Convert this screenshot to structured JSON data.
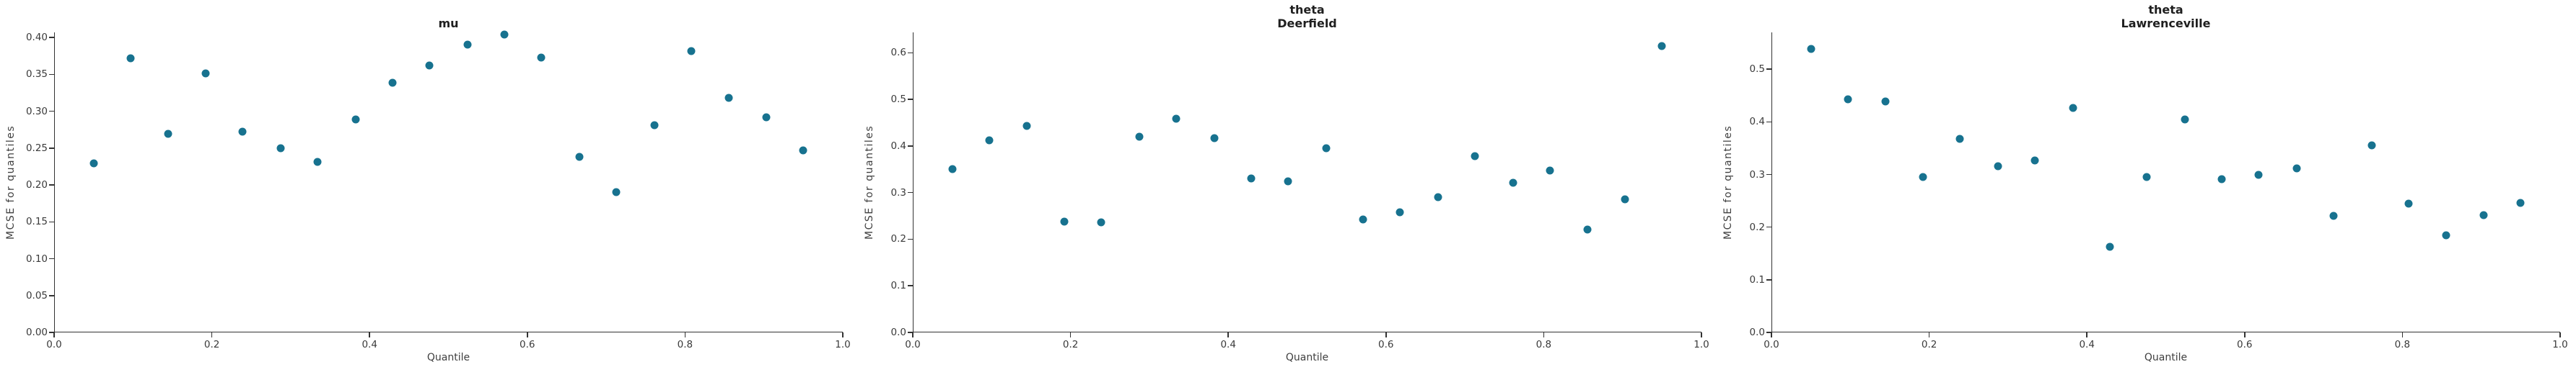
{
  "figure": {
    "background": "#ffffff",
    "point_color": "#17728f",
    "axis_color": "#333333",
    "tick_text_color": "#3a3a3a",
    "axis_title_color": "#3f3f3f",
    "title_color": "#1f1f1f"
  },
  "chart_data": [
    {
      "type": "scatter",
      "title_lines": [
        "mu",
        ""
      ],
      "xlabel": "Quantile",
      "ylabel": "MCSE for quantiles",
      "x": [
        0.05,
        0.097,
        0.145,
        0.192,
        0.239,
        0.287,
        0.334,
        0.382,
        0.429,
        0.476,
        0.524,
        0.571,
        0.618,
        0.666,
        0.713,
        0.761,
        0.808,
        0.855,
        0.903,
        0.95
      ],
      "y": [
        0.229,
        0.372,
        0.269,
        0.351,
        0.272,
        0.25,
        0.231,
        0.289,
        0.339,
        0.362,
        0.39,
        0.404,
        0.373,
        0.238,
        0.19,
        0.281,
        0.382,
        0.318,
        0.292,
        0.247
      ],
      "xlim": [
        0,
        1
      ],
      "ylim": [
        0,
        0.407
      ],
      "x_ticks": [
        0.0,
        0.2,
        0.4,
        0.6,
        0.8,
        1.0
      ],
      "x_tick_labels": [
        "0.0",
        "0.2",
        "0.4",
        "0.6",
        "0.8",
        "1.0"
      ],
      "y_ticks": [
        0.0,
        0.05,
        0.1,
        0.15,
        0.2,
        0.25,
        0.3,
        0.35,
        0.4
      ],
      "y_tick_labels": [
        "0.00",
        "0.05",
        "0.10",
        "0.15",
        "0.20",
        "0.25",
        "0.30",
        "0.35",
        "0.40"
      ],
      "grid": false,
      "legend": "none"
    },
    {
      "type": "scatter",
      "title_lines": [
        "theta",
        "Deerfield"
      ],
      "xlabel": "Quantile",
      "ylabel": "MCSE for quantiles",
      "x": [
        0.05,
        0.097,
        0.145,
        0.192,
        0.239,
        0.287,
        0.334,
        0.382,
        0.429,
        0.476,
        0.524,
        0.571,
        0.618,
        0.666,
        0.713,
        0.761,
        0.808,
        0.855,
        0.903,
        0.95
      ],
      "y": [
        0.351,
        0.413,
        0.444,
        0.238,
        0.236,
        0.42,
        0.458,
        0.417,
        0.33,
        0.325,
        0.396,
        0.243,
        0.258,
        0.291,
        0.378,
        0.322,
        0.347,
        0.221,
        0.286,
        0.614
      ],
      "xlim": [
        0,
        1
      ],
      "ylim": [
        0,
        0.644
      ],
      "x_ticks": [
        0.0,
        0.2,
        0.4,
        0.6,
        0.8,
        1.0
      ],
      "x_tick_labels": [
        "0.0",
        "0.2",
        "0.4",
        "0.6",
        "0.8",
        "1.0"
      ],
      "y_ticks": [
        0.0,
        0.1,
        0.2,
        0.3,
        0.4,
        0.5,
        0.6
      ],
      "y_tick_labels": [
        "0.0",
        "0.1",
        "0.2",
        "0.3",
        "0.4",
        "0.5",
        "0.6"
      ],
      "grid": false,
      "legend": "none"
    },
    {
      "type": "scatter",
      "title_lines": [
        "theta",
        "Lawrenceville"
      ],
      "xlabel": "Quantile",
      "ylabel": "MCSE for quantiles",
      "x": [
        0.05,
        0.097,
        0.145,
        0.192,
        0.239,
        0.287,
        0.334,
        0.382,
        0.429,
        0.476,
        0.524,
        0.571,
        0.618,
        0.666,
        0.713,
        0.761,
        0.808,
        0.855,
        0.903,
        0.95
      ],
      "y": [
        0.538,
        0.443,
        0.439,
        0.295,
        0.368,
        0.316,
        0.327,
        0.426,
        0.163,
        0.295,
        0.404,
        0.291,
        0.3,
        0.311,
        0.222,
        0.355,
        0.244,
        0.184,
        0.223,
        0.246
      ],
      "xlim": [
        0,
        1
      ],
      "ylim": [
        0,
        0.57
      ],
      "x_ticks": [
        0.0,
        0.2,
        0.4,
        0.6,
        0.8,
        1.0
      ],
      "x_tick_labels": [
        "0.0",
        "0.2",
        "0.4",
        "0.6",
        "0.8",
        "1.0"
      ],
      "y_ticks": [
        0.0,
        0.1,
        0.2,
        0.3,
        0.4,
        0.5
      ],
      "y_tick_labels": [
        "0.0",
        "0.1",
        "0.2",
        "0.3",
        "0.4",
        "0.5"
      ],
      "grid": false,
      "legend": "none"
    }
  ]
}
